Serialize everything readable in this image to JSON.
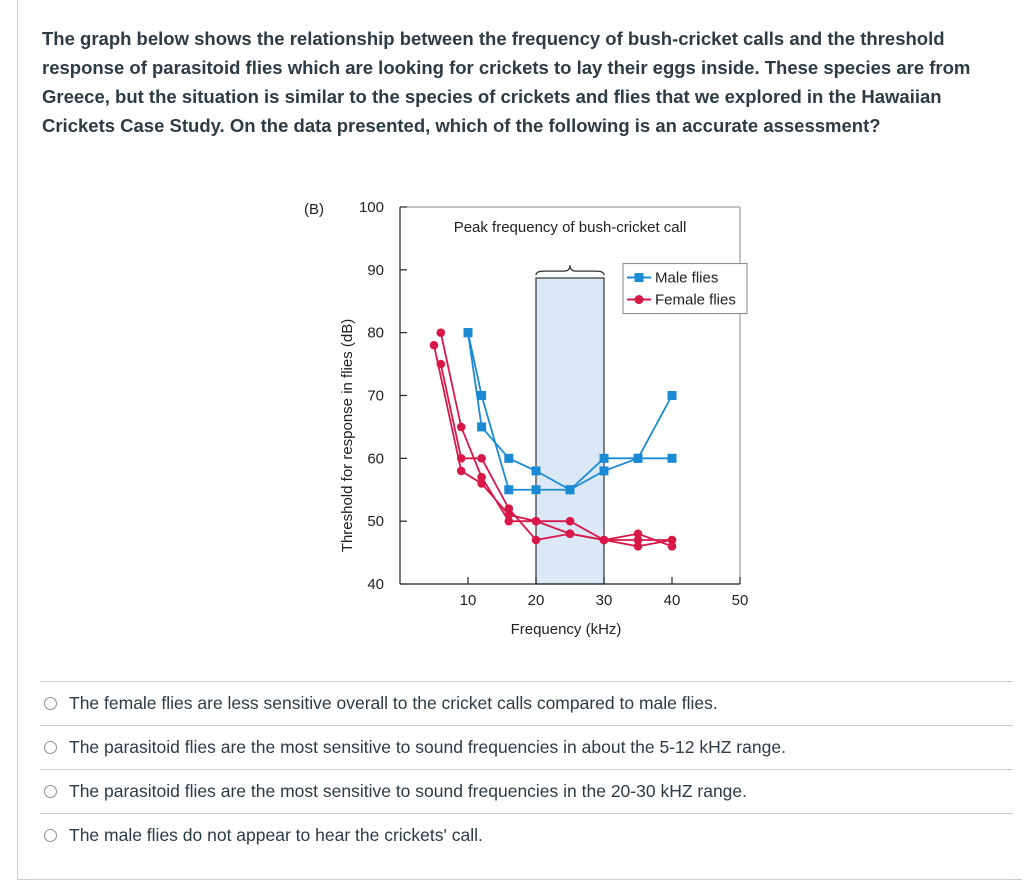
{
  "question": {
    "text": "The graph below shows the relationship between the frequency of bush-cricket calls and the threshold response of parasitoid flies which are looking for crickets to lay their eggs inside.  These species are from Greece, but the situation is similar to the species of crickets and flies that we explored in the Hawaiian Crickets Case Study. On the data presented, which of the following is an accurate assessment?"
  },
  "chart_data": {
    "type": "line",
    "panel_label": "(B)",
    "annotation": "Peak frequency of bush-cricket call",
    "highlight_band": [
      20,
      30
    ],
    "xlabel": "Frequency (kHz)",
    "ylabel": "Threshold for response in flies (dB)",
    "xlim": [
      0,
      50
    ],
    "ylim": [
      40,
      100
    ],
    "xticks": [
      "10",
      "20",
      "30",
      "40",
      "50"
    ],
    "yticks": [
      "40",
      "50",
      "60",
      "70",
      "80",
      "90",
      "100"
    ],
    "legend": [
      "Male flies",
      "Female flies"
    ],
    "colors": {
      "male": "#1a8ad4",
      "female": "#d9184a",
      "band": "#dbe9f6"
    },
    "series": [
      {
        "name": "Male flies",
        "group": "male",
        "x": [
          10,
          12,
          16,
          20,
          25,
          30,
          35,
          40
        ],
        "y": [
          80,
          65,
          60,
          58,
          55,
          58,
          60,
          70
        ]
      },
      {
        "name": "Male flies",
        "group": "male",
        "x": [
          10,
          12,
          16,
          20,
          25,
          30,
          35,
          40
        ],
        "y": [
          80,
          70,
          55,
          55,
          55,
          60,
          60,
          60
        ]
      },
      {
        "name": "Female flies",
        "group": "female",
        "x": [
          6,
          9,
          12,
          16,
          20,
          25,
          30,
          35,
          40
        ],
        "y": [
          80,
          65,
          57,
          50,
          50,
          50,
          47,
          48,
          46
        ]
      },
      {
        "name": "Female flies",
        "group": "female",
        "x": [
          6,
          9,
          12,
          16,
          20,
          25,
          30,
          35,
          40
        ],
        "y": [
          75,
          60,
          60,
          52,
          47,
          48,
          47,
          47,
          47
        ]
      },
      {
        "name": "Female flies",
        "group": "female",
        "x": [
          5,
          9,
          12,
          16,
          20,
          25,
          30,
          35,
          40
        ],
        "y": [
          78,
          58,
          56,
          51,
          50,
          48,
          47,
          46,
          47
        ]
      }
    ]
  },
  "answers": [
    {
      "label": "The female flies are less sensitive overall to the cricket calls compared to male flies."
    },
    {
      "label": "The parasitoid flies are the most sensitive to sound frequencies in about the 5-12 kHZ range."
    },
    {
      "label": "The parasitoid flies are the most sensitive to sound frequencies in the 20-30 kHZ range."
    },
    {
      "label": "The male flies do not appear to hear the crickets' call."
    }
  ]
}
